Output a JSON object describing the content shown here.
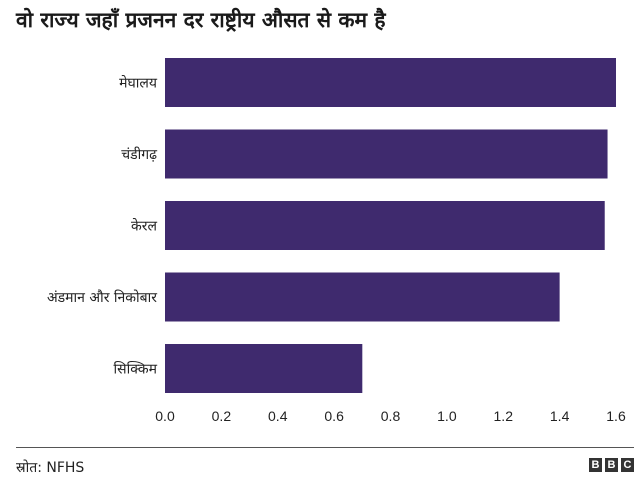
{
  "header": {
    "title": "वो राज्य जहाँ प्रजनन दर राष्ट्रीय औसत से कम है"
  },
  "footer": {
    "source": "स्रोत: NFHS",
    "logo": [
      "B",
      "B",
      "C"
    ]
  },
  "colors": {
    "bar": "#3f2a6e",
    "text": "#222222"
  },
  "chart_data": {
    "type": "bar",
    "orientation": "horizontal",
    "title": "वो राज्य जहाँ प्रजनन दर राष्ट्रीय औसत से कम है",
    "categories": [
      "मेघालय",
      "चंडीगढ़",
      "केरल",
      "अंडमान और निकोबार",
      "सिक्किम"
    ],
    "values": [
      1.6,
      1.57,
      1.56,
      1.4,
      0.7
    ],
    "xlim": [
      0,
      1.6
    ],
    "xticks": [
      "0.0",
      "0.2",
      "0.4",
      "0.6",
      "0.8",
      "1.0",
      "1.2",
      "1.4",
      "1.6"
    ],
    "grid": false,
    "legend": "none"
  }
}
